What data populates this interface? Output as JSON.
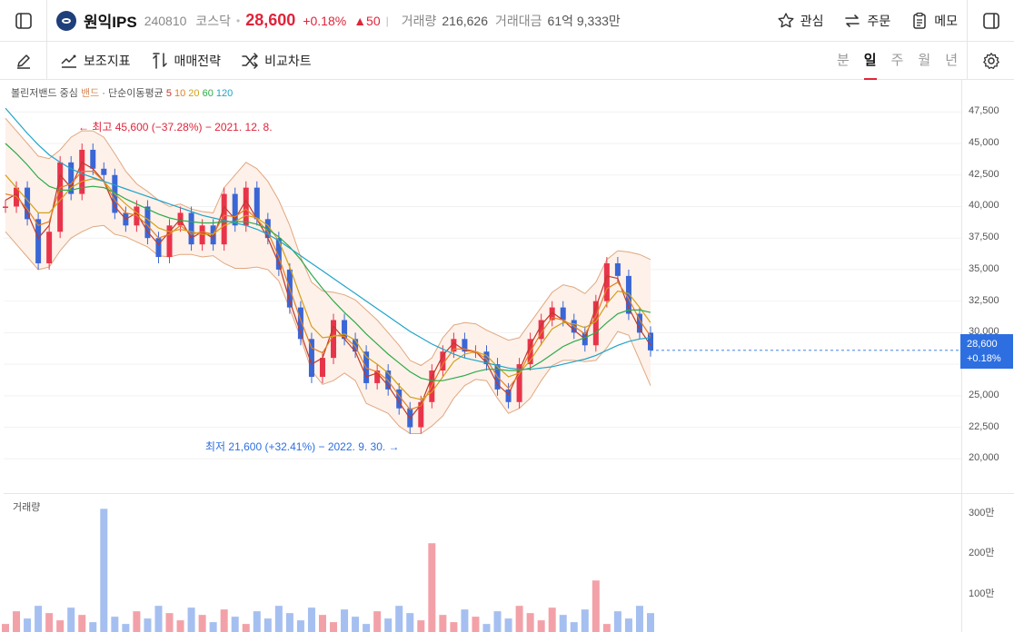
{
  "header": {
    "stock_name": "원익IPS",
    "stock_code": "240810",
    "market": "코스닥",
    "price": "28,600",
    "change_rate": "+0.18%",
    "change": "▲50",
    "volume_label": "거래량",
    "volume": "216,626",
    "amount_label": "거래대금",
    "amount": "61억 9,333만",
    "actions": [
      "관심",
      "주문",
      "메모"
    ]
  },
  "toolbar": {
    "tools": [
      "보조지표",
      "매매전략",
      "비교차트"
    ],
    "periods": [
      "분",
      "일",
      "주",
      "월",
      "년"
    ],
    "active_period": "일"
  },
  "legend": {
    "bollinger": "볼린저밴드 중심",
    "band": "밴드",
    "sep": "·",
    "ma_label": "단순이동평균",
    "ma": [
      {
        "label": "5",
        "color": "#c0392b"
      },
      {
        "label": "10",
        "color": "#e67e22"
      },
      {
        "label": "20",
        "color": "#d4a017"
      },
      {
        "label": "60",
        "color": "#2eaa4a"
      },
      {
        "label": "120",
        "color": "#20a4c8"
      }
    ]
  },
  "annotations": {
    "max": "← 최고 45,600 (−37.28%) − 2021. 12. 8.",
    "min": "최저 21,600 (+32.41%) − 2022. 9. 30. →"
  },
  "price_tag": {
    "price": "28,600",
    "rate": "+0.18%"
  },
  "volume_title": "거래량",
  "chart_data": {
    "type": "line",
    "title": "",
    "y_ticks": [
      "47,500",
      "45,000",
      "42,500",
      "40,000",
      "37,500",
      "35,000",
      "32,500",
      "30,000",
      "27,500",
      "25,000",
      "22,500",
      "20,000"
    ],
    "y_values": [
      47500,
      45000,
      42500,
      40000,
      37500,
      35000,
      32500,
      30000,
      27500,
      25000,
      22500,
      20000
    ],
    "ylim": [
      19300,
      48600
    ],
    "volume_ticks": [
      "300만",
      "200만",
      "100만"
    ],
    "volume_values": [
      3000000,
      2000000,
      1000000
    ],
    "series": [
      {
        "name": "종가",
        "color": "#3a66d6",
        "values": [
          40000,
          41500,
          39000,
          35500,
          38000,
          43500,
          41000,
          44500,
          43000,
          42500,
          39500,
          38500,
          40000,
          37500,
          36000,
          38500,
          39500,
          37000,
          38500,
          37000,
          41000,
          38500,
          41500,
          39000,
          37500,
          35000,
          32000,
          29500,
          26500,
          28000,
          31000,
          29500,
          28500,
          26000,
          27000,
          25500,
          24000,
          22500,
          24500,
          27000,
          28500,
          29500,
          28500,
          28500,
          27500,
          25500,
          24500,
          27500,
          29500,
          31000,
          32000,
          31000,
          30000,
          29000,
          32500,
          35500,
          34500,
          31500,
          30000,
          28600
        ]
      },
      {
        "name": "",
        "color": "#c0392b",
        "values": [
          40500,
          41000,
          39500,
          37500,
          38500,
          42500,
          41500,
          43500,
          43000,
          42000,
          40000,
          39000,
          39500,
          38000,
          37000,
          38000,
          39000,
          37500,
          38000,
          37500,
          40000,
          39000,
          40500,
          39000,
          37500,
          35500,
          32500,
          30000,
          27500,
          28000,
          30500,
          29500,
          28500,
          26500,
          26800,
          25800,
          24500,
          23200,
          24300,
          26500,
          28200,
          29200,
          28600,
          28500,
          27600,
          25900,
          25100,
          27000,
          29000,
          30600,
          31600,
          31000,
          30200,
          29500,
          32000,
          34500,
          34300,
          32000,
          30300,
          29000
        ]
      },
      {
        "name": "",
        "color": "#e67e22",
        "values": [
          41000,
          40800,
          39800,
          38500,
          38800,
          41500,
          41800,
          42800,
          42800,
          42000,
          40500,
          39500,
          39300,
          38500,
          37500,
          37800,
          38500,
          37800,
          38000,
          37800,
          39300,
          39200,
          39800,
          39000,
          38000,
          36000,
          33500,
          31000,
          28800,
          28400,
          29800,
          29700,
          28900,
          27200,
          26900,
          26200,
          25000,
          23900,
          24200,
          25800,
          27500,
          28700,
          28700,
          28500,
          27900,
          26500,
          25600,
          26700,
          28500,
          30000,
          31200,
          31000,
          30500,
          29900,
          31300,
          33500,
          34000,
          32700,
          31000,
          29700
        ]
      },
      {
        "name": "",
        "color": "#d4a017",
        "values": [
          42500,
          41500,
          40500,
          39500,
          39500,
          40500,
          41500,
          42000,
          42200,
          42000,
          41000,
          40200,
          39500,
          39000,
          38300,
          38000,
          38200,
          38000,
          37800,
          37800,
          38500,
          38800,
          39300,
          39100,
          38500,
          37300,
          35200,
          32800,
          30500,
          29600,
          29700,
          29900,
          29400,
          28100,
          27500,
          26800,
          25800,
          24900,
          24700,
          25300,
          26500,
          27700,
          28300,
          28500,
          28200,
          27300,
          26500,
          26800,
          27800,
          29100,
          30300,
          30800,
          30700,
          30400,
          30900,
          32300,
          33300,
          33100,
          32000,
          30800
        ]
      },
      {
        "name": "",
        "color": "#2eaa4a",
        "values": [
          45000,
          44200,
          43300,
          42300,
          41600,
          41300,
          41300,
          41500,
          41600,
          41500,
          41100,
          40600,
          40200,
          39800,
          39400,
          39100,
          38900,
          38800,
          38700,
          38700,
          38800,
          38800,
          38800,
          38600,
          38200,
          37600,
          36800,
          35800,
          34600,
          33500,
          32500,
          31600,
          30800,
          29900,
          29100,
          28300,
          27600,
          26900,
          26400,
          26200,
          26200,
          26400,
          26600,
          26900,
          27100,
          27100,
          27000,
          27000,
          27200,
          27700,
          28300,
          28900,
          29300,
          29600,
          30000,
          30800,
          31500,
          31800,
          31800,
          31600
        ]
      },
      {
        "name": "",
        "color": "#20a4c8",
        "values": [
          47800,
          46800,
          45800,
          44900,
          44100,
          43500,
          43000,
          42600,
          42300,
          42000,
          41700,
          41400,
          41100,
          40800,
          40500,
          40200,
          39900,
          39600,
          39300,
          39100,
          38900,
          38700,
          38500,
          38200,
          37800,
          37300,
          36700,
          36100,
          35500,
          34900,
          34300,
          33700,
          33100,
          32500,
          31900,
          31300,
          30700,
          30100,
          29600,
          29100,
          28700,
          28300,
          28000,
          27800,
          27600,
          27400,
          27200,
          27100,
          27100,
          27200,
          27300,
          27500,
          27700,
          27900,
          28200,
          28600,
          29000,
          29300,
          29500,
          29600
        ]
      }
    ],
    "bollinger_upper": [
      47000,
      46000,
      45000,
      44000,
      43800,
      44500,
      45500,
      46000,
      46000,
      45500,
      44200,
      42800,
      41800,
      41200,
      40500,
      40000,
      40200,
      39800,
      39600,
      39500,
      41500,
      42500,
      43500,
      43000,
      42000,
      40500,
      38500,
      36000,
      34000,
      33300,
      33200,
      33000,
      32600,
      31800,
      31000,
      30000,
      29000,
      27800,
      27400,
      28000,
      29600,
      30600,
      30800,
      30700,
      30200,
      29800,
      29400,
      29600,
      30800,
      32000,
      33200,
      33800,
      33600,
      33100,
      34000,
      35800,
      36500,
      36400,
      36200,
      35800
    ],
    "bollinger_lower": [
      38000,
      37000,
      36000,
      35000,
      35200,
      36500,
      37500,
      38000,
      38400,
      38500,
      37800,
      37600,
      37200,
      36800,
      36100,
      36000,
      36200,
      36200,
      36000,
      36100,
      35500,
      35100,
      35100,
      35200,
      35000,
      34100,
      31900,
      29600,
      27000,
      25900,
      26200,
      26800,
      26200,
      24400,
      24000,
      23600,
      22600,
      22000,
      22000,
      22600,
      23400,
      24800,
      25800,
      26300,
      26200,
      24800,
      23600,
      24000,
      24800,
      26200,
      27400,
      27800,
      27800,
      27700,
      27800,
      28800,
      30100,
      29800,
      27800,
      25800
    ]
  }
}
